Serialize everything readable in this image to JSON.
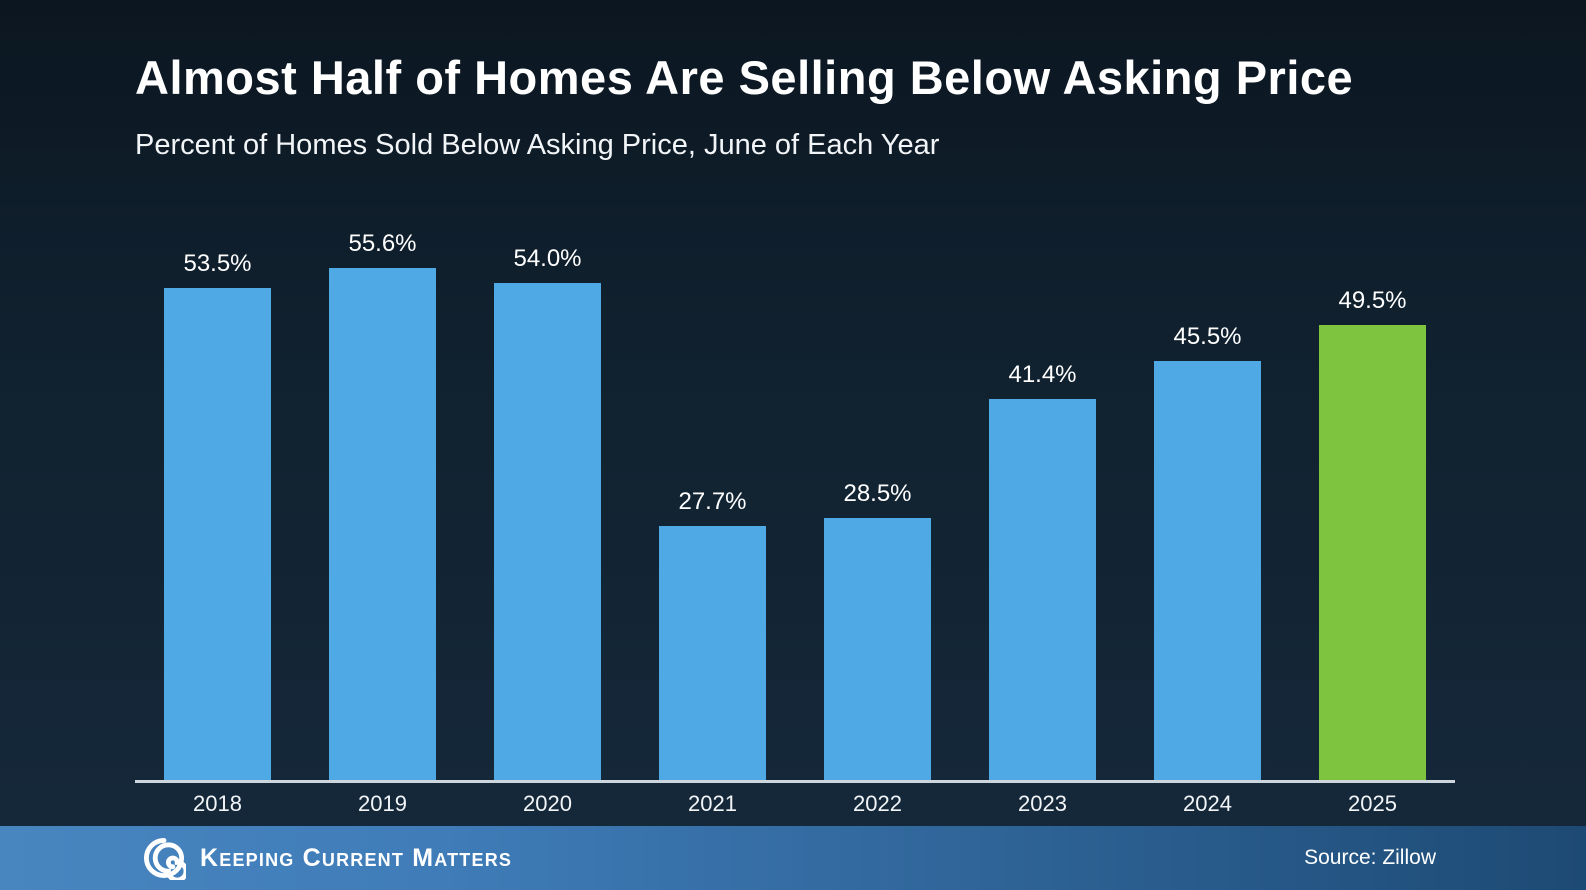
{
  "title": "Almost Half of Homes Are Selling Below Asking Price",
  "subtitle": "Percent of Homes Sold Below Asking Price, June of Each Year",
  "chart_data": {
    "type": "bar",
    "categories": [
      "2018",
      "2019",
      "2020",
      "2021",
      "2022",
      "2023",
      "2024",
      "2025"
    ],
    "values": [
      53.5,
      55.6,
      54.0,
      27.7,
      28.5,
      41.4,
      45.5,
      49.5
    ],
    "value_labels": [
      "53.5%",
      "55.6%",
      "54.0%",
      "27.7%",
      "28.5%",
      "41.4%",
      "45.5%",
      "49.5%"
    ],
    "title": "Almost Half of Homes Are Selling Below Asking Price",
    "subtitle": "Percent of Homes Sold Below Asking Price, June of Each Year",
    "xlabel": "",
    "ylabel": "",
    "ylim": [
      0,
      63
    ],
    "grid": false,
    "legend": "none",
    "highlight_index": 7
  },
  "footer": {
    "brand": "Keeping Current Matters",
    "source": "Source: Zillow"
  },
  "colors": {
    "background_top": "#0b1620",
    "background_bottom": "#16293c",
    "bar_blue": "#4fa9e5",
    "bar_green": "#7ec43f",
    "axis_line": "#ccd6dc",
    "text": "#ffffff",
    "footer_left": "#4886c0",
    "footer_right": "#1d4a74"
  }
}
